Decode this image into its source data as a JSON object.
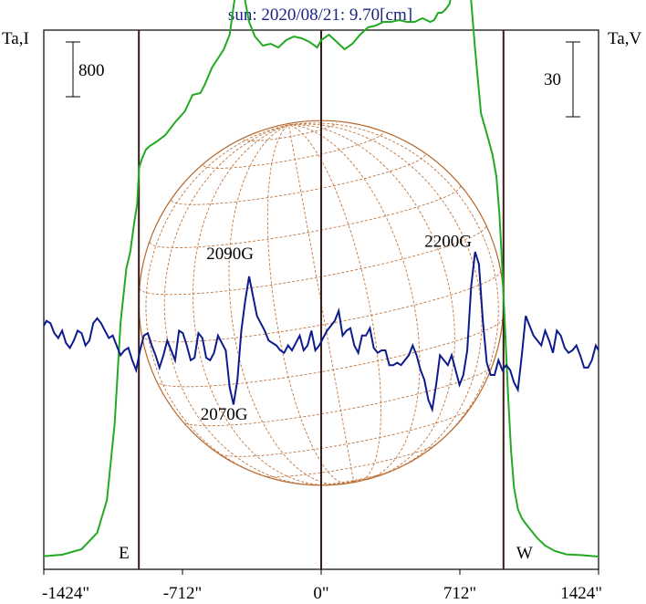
{
  "chart_data": {
    "type": "line",
    "title": "sun: 2020/08/21: 9.70[cm]",
    "left_axis_label": "Ta,I",
    "right_axis_label": "Ta,V",
    "left_scale_bar": "800",
    "right_scale_bar": "30",
    "x_unit": "arcsec",
    "xlim": [
      -1424,
      1424
    ],
    "x_ticks": [
      -1424,
      -712,
      0,
      712,
      1424
    ],
    "x_tick_labels": [
      "-1424\"",
      "-712\"",
      "0\"",
      "712\"",
      "1424\""
    ],
    "limb_markers": [
      {
        "x": -936,
        "label": "E"
      },
      {
        "x": 0,
        "label": ""
      },
      {
        "x": 936,
        "label": "W"
      }
    ],
    "ylim_I": [
      0,
      2800
    ],
    "ylim_V": [
      -60,
      60
    ],
    "series": [
      {
        "name": "Ta,I",
        "color": "#22aa22",
        "axis": "left",
        "x": [
          -1424,
          -1330,
          -1230,
          -1150,
          -1100,
          -1060,
          -1030,
          -1000,
          -980,
          -960,
          -945,
          -935,
          -920,
          -900,
          -880,
          -850,
          -800,
          -750,
          -700,
          -660,
          -620,
          -600,
          -560,
          -530,
          -500,
          -470,
          -440,
          -420,
          -400,
          -370,
          -340,
          -300,
          -260,
          -220,
          -180,
          -140,
          -100,
          -60,
          -20,
          0,
          40,
          80,
          120,
          160,
          200,
          240,
          280,
          320,
          360,
          400,
          440,
          480,
          520,
          560,
          580,
          600,
          620,
          640,
          660,
          680,
          700,
          710,
          720,
          740,
          760,
          790,
          820,
          860,
          880,
          900,
          915,
          930,
          945,
          960,
          975,
          990,
          1010,
          1030,
          1050,
          1080,
          1110,
          1150,
          1200,
          1260,
          1330,
          1424
        ],
        "y": [
          22,
          30,
          60,
          150,
          330,
          750,
          1300,
          1600,
          1690,
          1850,
          1950,
          2150,
          2200,
          2250,
          2270,
          2290,
          2330,
          2400,
          2460,
          2550,
          2560,
          2600,
          2700,
          2750,
          2800,
          2880,
          3110,
          3250,
          3120,
          2950,
          2870,
          2820,
          2830,
          2810,
          2850,
          2870,
          2860,
          2840,
          2810,
          2850,
          2880,
          2840,
          2800,
          2830,
          2880,
          2920,
          2930,
          2950,
          2950,
          2960,
          2950,
          2950,
          2970,
          2950,
          2960,
          3000,
          3000,
          3020,
          3050,
          3200,
          3520,
          3640,
          3750,
          3550,
          3200,
          2800,
          2450,
          2300,
          2220,
          2100,
          1900,
          1600,
          1250,
          900,
          600,
          400,
          280,
          230,
          200,
          160,
          120,
          80,
          50,
          32,
          28,
          20
        ]
      },
      {
        "name": "Ta,V",
        "color": "#0d1b8c",
        "axis": "right",
        "x": [
          -1424,
          -1410,
          -1390,
          -1370,
          -1350,
          -1330,
          -1310,
          -1290,
          -1270,
          -1250,
          -1230,
          -1210,
          -1190,
          -1170,
          -1150,
          -1130,
          -1110,
          -1090,
          -1070,
          -1050,
          -1030,
          -1010,
          -990,
          -970,
          -950,
          -930,
          -910,
          -890,
          -870,
          -850,
          -830,
          -810,
          -790,
          -770,
          -750,
          -730,
          -710,
          -690,
          -670,
          -650,
          -630,
          -610,
          -590,
          -570,
          -550,
          -530,
          -510,
          -490,
          -470,
          -450,
          -430,
          -410,
          -390,
          -370,
          -350,
          -330,
          -310,
          -290,
          -270,
          -250,
          -230,
          -210,
          -190,
          -170,
          -150,
          -130,
          -110,
          -90,
          -70,
          -50,
          -30,
          -10,
          10,
          30,
          50,
          70,
          90,
          110,
          130,
          150,
          170,
          190,
          210,
          230,
          250,
          270,
          290,
          310,
          330,
          350,
          370,
          390,
          410,
          430,
          450,
          470,
          490,
          510,
          530,
          550,
          570,
          590,
          610,
          630,
          650,
          670,
          690,
          710,
          730,
          750,
          770,
          790,
          810,
          830,
          850,
          870,
          890,
          910,
          930,
          950,
          970,
          990,
          1010,
          1030,
          1050,
          1070,
          1090,
          1110,
          1130,
          1150,
          1170,
          1190,
          1210,
          1230,
          1250,
          1270,
          1290,
          1310,
          1330,
          1350,
          1370,
          1390,
          1410,
          1424
        ],
        "y": [
          0,
          2,
          1,
          -3,
          -5,
          -2,
          -7,
          -9,
          -6,
          -2,
          -3,
          -8,
          -6,
          1,
          3,
          1,
          -2,
          -5,
          -4,
          -8,
          -12,
          -10,
          -9,
          -14,
          -18,
          -10,
          -4,
          -3,
          -8,
          -12,
          -17,
          -12,
          -6,
          -10,
          -14,
          -2,
          -3,
          -8,
          -14,
          -13,
          -3,
          -5,
          -13,
          -14,
          -11,
          -4,
          -7,
          -10,
          -25,
          -32,
          -22,
          -2,
          10,
          20,
          12,
          4,
          1,
          -2,
          -6,
          -7,
          -8,
          -10,
          -11,
          -8,
          -10,
          -7,
          -4,
          -10,
          -8,
          -2,
          -10,
          -8,
          -5,
          -2,
          0,
          2,
          6,
          -4,
          -2,
          -1,
          -8,
          -11,
          -4,
          -4,
          -1,
          -9,
          -11,
          -10,
          -10,
          -16,
          -16,
          -15,
          -16,
          -14,
          -12,
          -8,
          -12,
          -18,
          -22,
          -30,
          -34,
          -24,
          -12,
          -14,
          -16,
          -12,
          -18,
          -24,
          -20,
          -10,
          16,
          30,
          25,
          2,
          -15,
          -20,
          -20,
          -14,
          -18,
          -16,
          -18,
          -23,
          -26,
          -12,
          4,
          0,
          -4,
          -6,
          -8,
          -2,
          -6,
          -11,
          -2,
          -4,
          -9,
          -11,
          -10,
          -8,
          -12,
          -17,
          -17,
          -14,
          -8,
          -10
        ]
      }
    ],
    "annotations": [
      {
        "text": "2090G",
        "x": -430,
        "y_V": 16
      },
      {
        "text": "2200G",
        "x": 690,
        "y_V": 21
      },
      {
        "text": "2070G",
        "x": -460,
        "y_V": -30
      }
    ],
    "solar_disk": {
      "radius_arcsec": 936,
      "color": "#b5652a",
      "grid_color": "#c07640"
    }
  }
}
